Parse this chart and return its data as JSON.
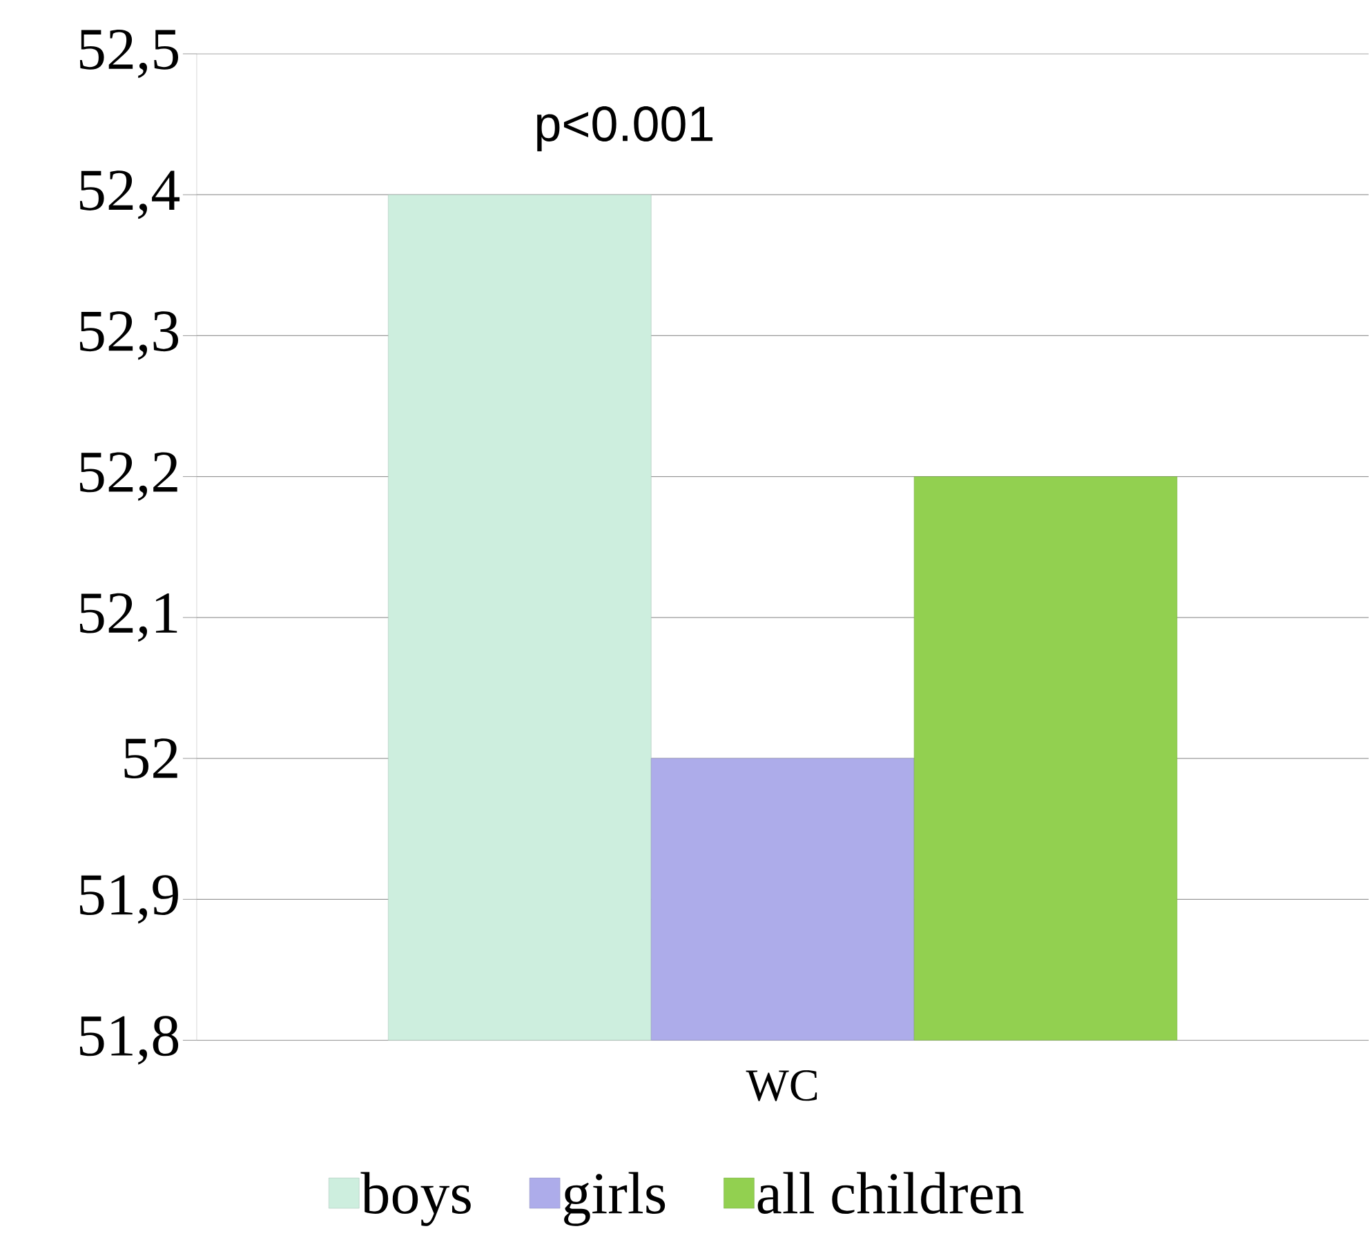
{
  "chart_data": {
    "type": "bar",
    "categories": [
      "WC"
    ],
    "series": [
      {
        "name": "boys",
        "color": "#cdeede",
        "values": [
          52.4
        ]
      },
      {
        "name": "girls",
        "color": "#adacea",
        "values": [
          52.0
        ]
      },
      {
        "name": "all children",
        "color": "#92d050",
        "values": [
          52.2
        ]
      }
    ],
    "ylim": [
      51.8,
      52.5
    ],
    "yticks": [
      {
        "value": 51.8,
        "label": "51,8"
      },
      {
        "value": 51.9,
        "label": "51,9"
      },
      52,
      {
        "value": 52.1,
        "label": "52,1"
      },
      {
        "value": 52.2,
        "label": "52,2"
      },
      {
        "value": 52.3,
        "label": "52,3"
      },
      {
        "value": 52.4,
        "label": "52,4"
      },
      {
        "value": 52.5,
        "label": "52,5"
      }
    ],
    "annotations": [
      "p<0.001"
    ],
    "grid": "y",
    "legend": "bottom"
  }
}
